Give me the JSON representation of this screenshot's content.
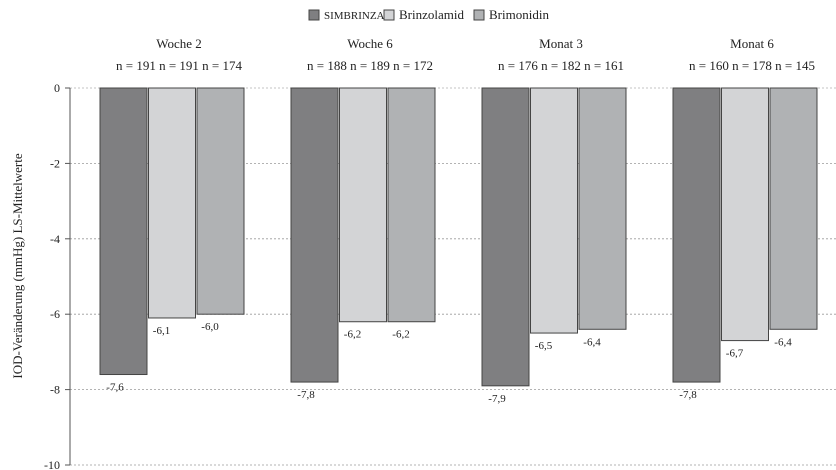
{
  "chart_data": {
    "type": "bar",
    "title": "",
    "xlabel": "",
    "ylabel": "IOD-Veränderung (mmHg) LS-Mittelwerte",
    "ylim": [
      -10,
      0
    ],
    "yticks": [
      0,
      -2,
      -4,
      -6,
      -8,
      -10
    ],
    "grid": true,
    "legend_position": "top-center",
    "categories": [
      "Woche 2",
      "Woche 6",
      "Monat 3",
      "Monat 6"
    ],
    "n_labels": [
      "n = 191 n = 191 n = 174",
      "n = 188 n = 189 n = 172",
      "n = 176 n = 182 n = 161",
      "n = 160 n = 178 n = 145"
    ],
    "series": [
      {
        "name": "SIMBRINZA",
        "values": [
          -7.6,
          -7.8,
          -7.9,
          -7.8
        ],
        "labels": [
          "-7,6",
          "-7,8",
          "-7,9",
          "-7,8"
        ],
        "color": "#7f7f81"
      },
      {
        "name": "Brinzolamid",
        "values": [
          -6.1,
          -6.2,
          -6.5,
          -6.7
        ],
        "labels": [
          "-6,1",
          "-6,2",
          "-6,5",
          "-6,7"
        ],
        "color": "#d3d4d6"
      },
      {
        "name": "Brimonidin",
        "values": [
          -6.0,
          -6.2,
          -6.4,
          -6.4
        ],
        "labels": [
          "-6,0",
          "-6,2",
          "-6,4",
          "-6,4"
        ],
        "color": "#b0b2b4"
      }
    ]
  }
}
